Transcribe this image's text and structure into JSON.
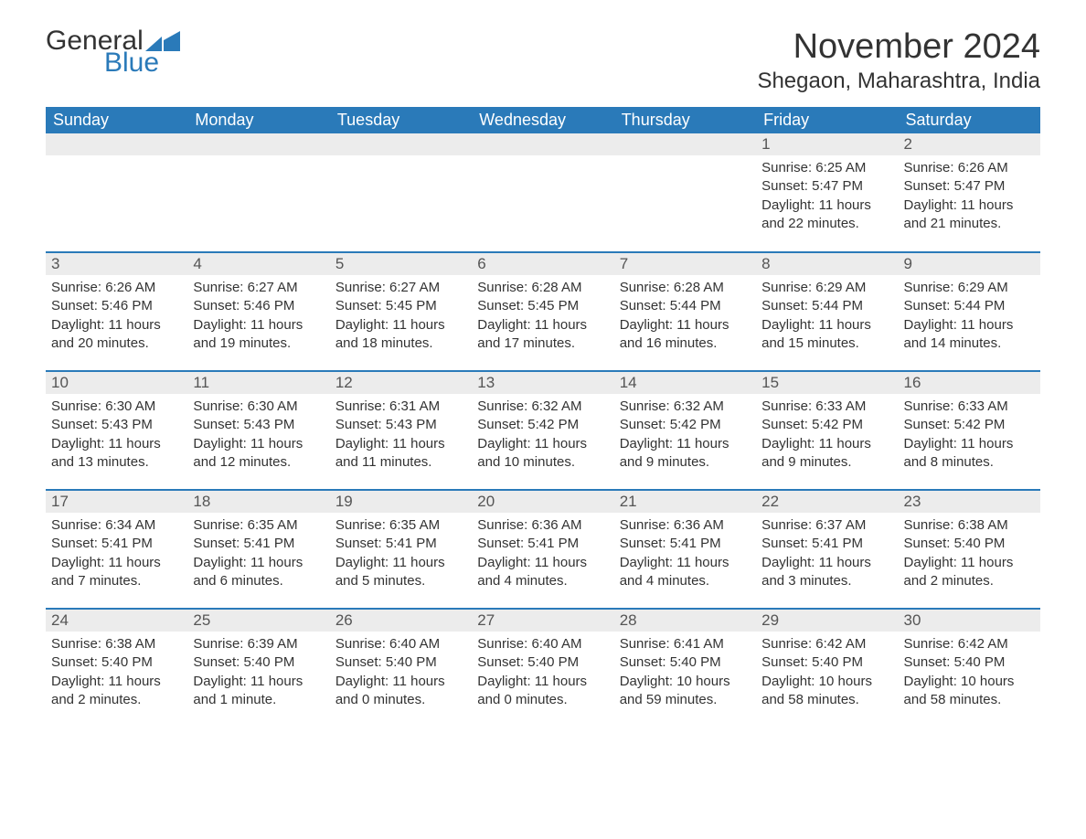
{
  "logo": {
    "word1": "General",
    "word2": "Blue"
  },
  "title": "November 2024",
  "subtitle": "Shegaon, Maharashtra, India",
  "colors": {
    "header_bg": "#2a7ab9",
    "header_text": "#ffffff",
    "daynum_bg": "#ececec",
    "cell_border": "#2a7ab9",
    "text": "#333333",
    "logo_accent": "#2a7ab9"
  },
  "columns": [
    "Sunday",
    "Monday",
    "Tuesday",
    "Wednesday",
    "Thursday",
    "Friday",
    "Saturday"
  ],
  "weeks": [
    [
      {
        "active": false
      },
      {
        "active": false
      },
      {
        "active": false
      },
      {
        "active": false
      },
      {
        "active": false
      },
      {
        "active": true,
        "day": "1",
        "sunrise": "Sunrise: 6:25 AM",
        "sunset": "Sunset: 5:47 PM",
        "daylight": "Daylight: 11 hours and 22 minutes."
      },
      {
        "active": true,
        "day": "2",
        "sunrise": "Sunrise: 6:26 AM",
        "sunset": "Sunset: 5:47 PM",
        "daylight": "Daylight: 11 hours and 21 minutes."
      }
    ],
    [
      {
        "active": true,
        "day": "3",
        "sunrise": "Sunrise: 6:26 AM",
        "sunset": "Sunset: 5:46 PM",
        "daylight": "Daylight: 11 hours and 20 minutes."
      },
      {
        "active": true,
        "day": "4",
        "sunrise": "Sunrise: 6:27 AM",
        "sunset": "Sunset: 5:46 PM",
        "daylight": "Daylight: 11 hours and 19 minutes."
      },
      {
        "active": true,
        "day": "5",
        "sunrise": "Sunrise: 6:27 AM",
        "sunset": "Sunset: 5:45 PM",
        "daylight": "Daylight: 11 hours and 18 minutes."
      },
      {
        "active": true,
        "day": "6",
        "sunrise": "Sunrise: 6:28 AM",
        "sunset": "Sunset: 5:45 PM",
        "daylight": "Daylight: 11 hours and 17 minutes."
      },
      {
        "active": true,
        "day": "7",
        "sunrise": "Sunrise: 6:28 AM",
        "sunset": "Sunset: 5:44 PM",
        "daylight": "Daylight: 11 hours and 16 minutes."
      },
      {
        "active": true,
        "day": "8",
        "sunrise": "Sunrise: 6:29 AM",
        "sunset": "Sunset: 5:44 PM",
        "daylight": "Daylight: 11 hours and 15 minutes."
      },
      {
        "active": true,
        "day": "9",
        "sunrise": "Sunrise: 6:29 AM",
        "sunset": "Sunset: 5:44 PM",
        "daylight": "Daylight: 11 hours and 14 minutes."
      }
    ],
    [
      {
        "active": true,
        "day": "10",
        "sunrise": "Sunrise: 6:30 AM",
        "sunset": "Sunset: 5:43 PM",
        "daylight": "Daylight: 11 hours and 13 minutes."
      },
      {
        "active": true,
        "day": "11",
        "sunrise": "Sunrise: 6:30 AM",
        "sunset": "Sunset: 5:43 PM",
        "daylight": "Daylight: 11 hours and 12 minutes."
      },
      {
        "active": true,
        "day": "12",
        "sunrise": "Sunrise: 6:31 AM",
        "sunset": "Sunset: 5:43 PM",
        "daylight": "Daylight: 11 hours and 11 minutes."
      },
      {
        "active": true,
        "day": "13",
        "sunrise": "Sunrise: 6:32 AM",
        "sunset": "Sunset: 5:42 PM",
        "daylight": "Daylight: 11 hours and 10 minutes."
      },
      {
        "active": true,
        "day": "14",
        "sunrise": "Sunrise: 6:32 AM",
        "sunset": "Sunset: 5:42 PM",
        "daylight": "Daylight: 11 hours and 9 minutes."
      },
      {
        "active": true,
        "day": "15",
        "sunrise": "Sunrise: 6:33 AM",
        "sunset": "Sunset: 5:42 PM",
        "daylight": "Daylight: 11 hours and 9 minutes."
      },
      {
        "active": true,
        "day": "16",
        "sunrise": "Sunrise: 6:33 AM",
        "sunset": "Sunset: 5:42 PM",
        "daylight": "Daylight: 11 hours and 8 minutes."
      }
    ],
    [
      {
        "active": true,
        "day": "17",
        "sunrise": "Sunrise: 6:34 AM",
        "sunset": "Sunset: 5:41 PM",
        "daylight": "Daylight: 11 hours and 7 minutes."
      },
      {
        "active": true,
        "day": "18",
        "sunrise": "Sunrise: 6:35 AM",
        "sunset": "Sunset: 5:41 PM",
        "daylight": "Daylight: 11 hours and 6 minutes."
      },
      {
        "active": true,
        "day": "19",
        "sunrise": "Sunrise: 6:35 AM",
        "sunset": "Sunset: 5:41 PM",
        "daylight": "Daylight: 11 hours and 5 minutes."
      },
      {
        "active": true,
        "day": "20",
        "sunrise": "Sunrise: 6:36 AM",
        "sunset": "Sunset: 5:41 PM",
        "daylight": "Daylight: 11 hours and 4 minutes."
      },
      {
        "active": true,
        "day": "21",
        "sunrise": "Sunrise: 6:36 AM",
        "sunset": "Sunset: 5:41 PM",
        "daylight": "Daylight: 11 hours and 4 minutes."
      },
      {
        "active": true,
        "day": "22",
        "sunrise": "Sunrise: 6:37 AM",
        "sunset": "Sunset: 5:41 PM",
        "daylight": "Daylight: 11 hours and 3 minutes."
      },
      {
        "active": true,
        "day": "23",
        "sunrise": "Sunrise: 6:38 AM",
        "sunset": "Sunset: 5:40 PM",
        "daylight": "Daylight: 11 hours and 2 minutes."
      }
    ],
    [
      {
        "active": true,
        "day": "24",
        "sunrise": "Sunrise: 6:38 AM",
        "sunset": "Sunset: 5:40 PM",
        "daylight": "Daylight: 11 hours and 2 minutes."
      },
      {
        "active": true,
        "day": "25",
        "sunrise": "Sunrise: 6:39 AM",
        "sunset": "Sunset: 5:40 PM",
        "daylight": "Daylight: 11 hours and 1 minute."
      },
      {
        "active": true,
        "day": "26",
        "sunrise": "Sunrise: 6:40 AM",
        "sunset": "Sunset: 5:40 PM",
        "daylight": "Daylight: 11 hours and 0 minutes."
      },
      {
        "active": true,
        "day": "27",
        "sunrise": "Sunrise: 6:40 AM",
        "sunset": "Sunset: 5:40 PM",
        "daylight": "Daylight: 11 hours and 0 minutes."
      },
      {
        "active": true,
        "day": "28",
        "sunrise": "Sunrise: 6:41 AM",
        "sunset": "Sunset: 5:40 PM",
        "daylight": "Daylight: 10 hours and 59 minutes."
      },
      {
        "active": true,
        "day": "29",
        "sunrise": "Sunrise: 6:42 AM",
        "sunset": "Sunset: 5:40 PM",
        "daylight": "Daylight: 10 hours and 58 minutes."
      },
      {
        "active": true,
        "day": "30",
        "sunrise": "Sunrise: 6:42 AM",
        "sunset": "Sunset: 5:40 PM",
        "daylight": "Daylight: 10 hours and 58 minutes."
      }
    ]
  ]
}
